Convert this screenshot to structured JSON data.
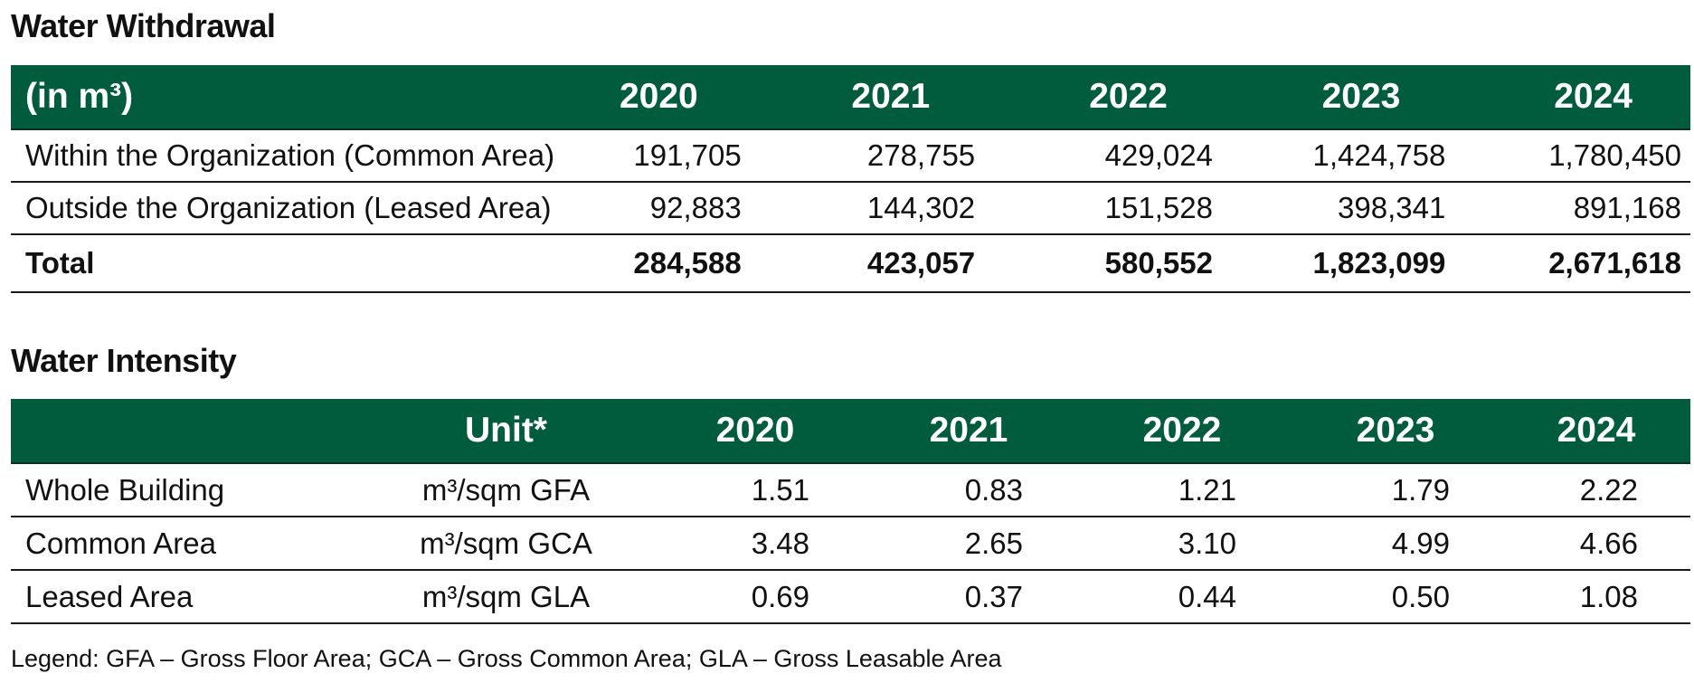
{
  "withdrawal": {
    "title": "Water Withdrawal",
    "header_label": "(in m³)",
    "years": [
      "2020",
      "2021",
      "2022",
      "2023",
      "2024"
    ],
    "rows": [
      {
        "label": "Within the Organization (Common Area)",
        "values": [
          "191,705",
          "278,755",
          "429,024",
          "1,424,758",
          "1,780,450"
        ]
      },
      {
        "label": "Outside the Organization (Leased Area)",
        "values": [
          "92,883",
          "144,302",
          "151,528",
          "398,341",
          "891,168"
        ]
      }
    ],
    "total": {
      "label": "Total",
      "values": [
        "284,588",
        "423,057",
        "580,552",
        "1,823,099",
        "2,671,618"
      ]
    }
  },
  "intensity": {
    "title": "Water Intensity",
    "header_label": "",
    "unit_header": "Unit*",
    "years": [
      "2020",
      "2021",
      "2022",
      "2023",
      "2024"
    ],
    "rows": [
      {
        "label": "Whole Building",
        "unit": "m³/sqm GFA",
        "values": [
          "1.51",
          "0.83",
          "1.21",
          "1.79",
          "2.22"
        ]
      },
      {
        "label": "Common Area",
        "unit": "m³/sqm GCA",
        "values": [
          "3.48",
          "2.65",
          "3.10",
          "4.99",
          "4.66"
        ]
      },
      {
        "label": "Leased Area",
        "unit": "m³/sqm GLA",
        "values": [
          "0.69",
          "0.37",
          "0.44",
          "0.50",
          "1.08"
        ]
      }
    ]
  },
  "legend": "Legend: GFA – Gross Floor Area; GCA – Gross Common Area; GLA – Gross Leasable Area",
  "colors": {
    "header_background": "#005c3c",
    "header_text": "#ffffff",
    "rule": "#1a1a1a"
  }
}
